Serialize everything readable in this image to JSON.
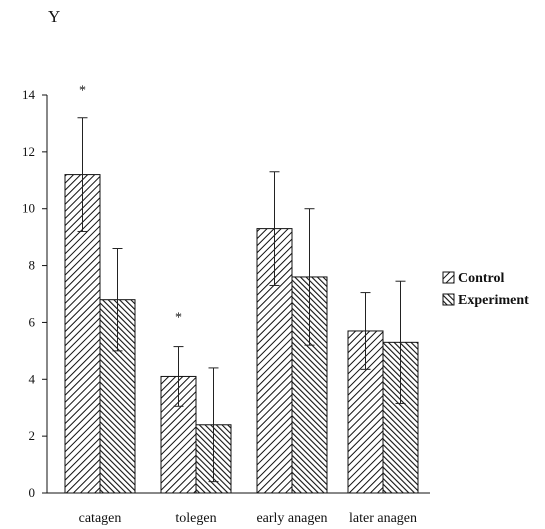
{
  "chart_data": {
    "type": "bar",
    "ylabel": "Y",
    "xlabel": "",
    "ylim": [
      0,
      14
    ],
    "yticks": [
      0,
      2,
      4,
      6,
      8,
      10,
      12,
      14
    ],
    "categories": [
      "catagen",
      "tolegen",
      "early anagen",
      "later anagen"
    ],
    "series": [
      {
        "name": "Control",
        "values": [
          11.2,
          4.1,
          9.3,
          5.7
        ],
        "errors": [
          2.0,
          1.05,
          2.0,
          1.35
        ]
      },
      {
        "name": "Experiment",
        "values": [
          6.8,
          2.4,
          7.6,
          5.3
        ],
        "errors": [
          1.8,
          2.0,
          2.4,
          2.15
        ]
      }
    ],
    "annotations": [
      {
        "text": "*",
        "category": 0,
        "series": 0,
        "y": 14.2
      },
      {
        "text": "*",
        "category": 1,
        "series": 0,
        "y": 6.2
      }
    ],
    "legend_position": "right",
    "grid": false
  }
}
